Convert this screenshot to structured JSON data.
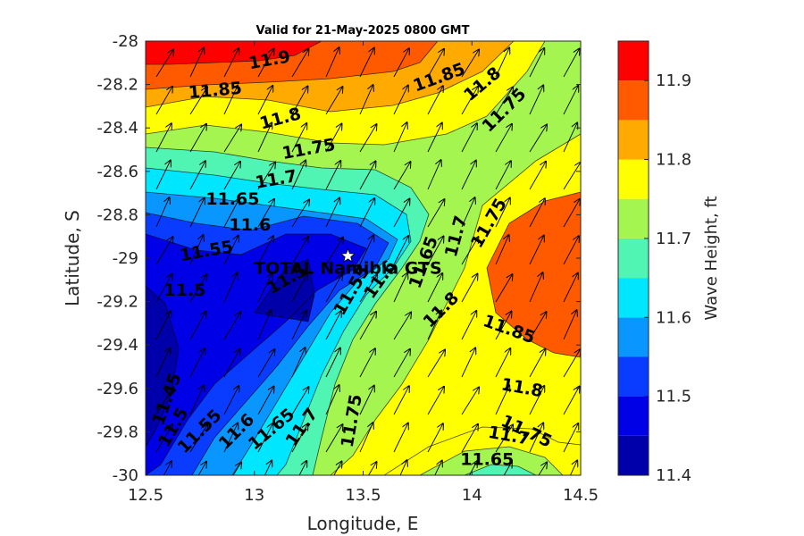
{
  "chart_data": {
    "type": "filled-contour",
    "title": "Valid for 21-May-2025 0800 GMT",
    "xlabel": "Longitude, E",
    "ylabel": "Latitude, S",
    "xlim": [
      12.5,
      14.5
    ],
    "ylim": [
      -30,
      -28
    ],
    "x_ticks": [
      "12.5",
      "13",
      "13.5",
      "14",
      "14.5"
    ],
    "y_ticks": [
      "-28",
      "-28.2",
      "-28.4",
      "-28.6",
      "-28.8",
      "-29",
      "-29.2",
      "-29.4",
      "-29.6",
      "-29.8",
      "-30"
    ],
    "colorbar": {
      "label": "Wave Height, ft",
      "range": [
        11.4,
        11.95
      ],
      "ticks": [
        "11.4",
        "11.5",
        "11.6",
        "11.7",
        "11.8",
        "11.9"
      ],
      "levels": [
        11.4,
        11.45,
        11.5,
        11.55,
        11.6,
        11.65,
        11.7,
        11.75,
        11.8,
        11.85,
        11.9,
        11.95
      ],
      "colors": [
        "#0000aa",
        "#0000e6",
        "#0a3cff",
        "#0a96ff",
        "#00e6ff",
        "#50f5b4",
        "#a5f550",
        "#ffff00",
        "#ffaa00",
        "#ff5a00",
        "#ff0000"
      ]
    },
    "contour_labels": [
      {
        "text": "11.9",
        "lon": 13.07,
        "lat": -28.09,
        "angle": -10
      },
      {
        "text": "11.85",
        "lon": 12.82,
        "lat": -28.23,
        "angle": -5
      },
      {
        "text": "11.85",
        "lon": 13.85,
        "lat": -28.17,
        "angle": -20
      },
      {
        "text": "11.8",
        "lon": 13.12,
        "lat": -28.36,
        "angle": -15
      },
      {
        "text": "11.8",
        "lon": 14.05,
        "lat": -28.2,
        "angle": -40
      },
      {
        "text": "11.75",
        "lon": 14.15,
        "lat": -28.32,
        "angle": -45
      },
      {
        "text": "11.75",
        "lon": 13.25,
        "lat": -28.5,
        "angle": -10
      },
      {
        "text": "11.7",
        "lon": 13.1,
        "lat": -28.64,
        "angle": -10
      },
      {
        "text": "11.65",
        "lon": 12.9,
        "lat": -28.73,
        "angle": 0
      },
      {
        "text": "11.6",
        "lon": 12.98,
        "lat": -28.85,
        "angle": 0
      },
      {
        "text": "11.55",
        "lon": 12.78,
        "lat": -28.97,
        "angle": -10
      },
      {
        "text": "11.5",
        "lon": 12.68,
        "lat": -29.15,
        "angle": 0
      },
      {
        "text": "11.5",
        "lon": 13.15,
        "lat": -29.1,
        "angle": -30
      },
      {
        "text": "11.55",
        "lon": 13.45,
        "lat": -29.15,
        "angle": -60
      },
      {
        "text": "11.6",
        "lon": 13.58,
        "lat": -29.1,
        "angle": -55
      },
      {
        "text": "11.65",
        "lon": 13.78,
        "lat": -29.02,
        "angle": -70
      },
      {
        "text": "11.7",
        "lon": 13.93,
        "lat": -28.9,
        "angle": -75
      },
      {
        "text": "11.75",
        "lon": 14.08,
        "lat": -28.84,
        "angle": -60
      },
      {
        "text": "11.8",
        "lon": 13.86,
        "lat": -29.24,
        "angle": -45
      },
      {
        "text": "11.85",
        "lon": 14.17,
        "lat": -29.33,
        "angle": 20
      },
      {
        "text": "11.8",
        "lon": 14.23,
        "lat": -29.6,
        "angle": 10
      },
      {
        "text": "11.75",
        "lon": 14.25,
        "lat": -29.8,
        "angle": 25
      },
      {
        "text": "11.7",
        "lon": 14.17,
        "lat": -29.82,
        "angle": 10
      },
      {
        "text": "11.65",
        "lon": 14.07,
        "lat": -29.93,
        "angle": 0
      },
      {
        "text": "11.75",
        "lon": 13.45,
        "lat": -29.75,
        "angle": -80
      },
      {
        "text": "11.7",
        "lon": 13.22,
        "lat": -29.78,
        "angle": -55
      },
      {
        "text": "11.65",
        "lon": 13.08,
        "lat": -29.79,
        "angle": -40
      },
      {
        "text": "11.6",
        "lon": 12.92,
        "lat": -29.8,
        "angle": -45
      },
      {
        "text": "11.55",
        "lon": 12.75,
        "lat": -29.8,
        "angle": -45
      },
      {
        "text": "11.5",
        "lon": 12.63,
        "lat": -29.78,
        "angle": -60
      },
      {
        "text": "11.45",
        "lon": 12.6,
        "lat": -29.65,
        "angle": -70
      }
    ],
    "station": {
      "name": "TOTAL Namibia GTS",
      "lon": 13.43,
      "lat": -28.99
    }
  }
}
